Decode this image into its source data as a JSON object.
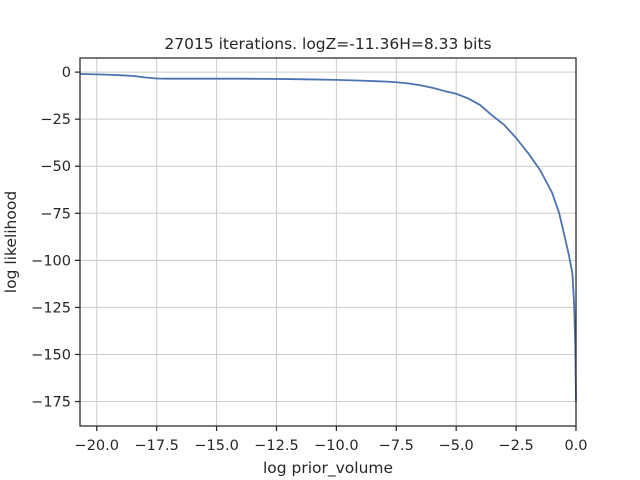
{
  "chart_data": {
    "type": "line",
    "title": "27015 iterations. logZ=-11.36H=8.33 bits",
    "xlabel": "log prior_volume",
    "ylabel": "log likelihood",
    "xlim": [
      -20.7,
      0.0
    ],
    "ylim": [
      -188,
      7.5
    ],
    "grid": true,
    "xticks": [
      -20.0,
      -17.5,
      -15.0,
      -12.5,
      -10.0,
      -7.5,
      -5.0,
      -2.5,
      0.0
    ],
    "xtick_labels": [
      "−20.0",
      "−17.5",
      "−15.0",
      "−12.5",
      "−10.0",
      "−7.5",
      "−5.0",
      "−2.5",
      "0.0"
    ],
    "yticks": [
      0,
      -25,
      -50,
      -75,
      -100,
      -125,
      -150,
      -175
    ],
    "ytick_labels": [
      "0",
      "−25",
      "−50",
      "−75",
      "−100",
      "−125",
      "−150",
      "−175"
    ],
    "color": "#4c72b0",
    "series": [
      {
        "x": [
          -20.7,
          -20.0,
          -19.5,
          -19.0,
          -18.5,
          -18.0,
          -17.5,
          -17.0,
          -16.0,
          -15.0,
          -14.0,
          -13.0,
          -12.0,
          -11.0,
          -10.0,
          -9.0,
          -8.0,
          -7.5,
          -7.0,
          -6.5,
          -6.0,
          -5.5,
          -5.0,
          -4.5,
          -4.0,
          -3.5,
          -3.0,
          -2.5,
          -2.0,
          -1.5,
          -1.0,
          -0.7,
          -0.5,
          -0.3,
          -0.15,
          -0.08,
          -0.03,
          0.0
        ],
        "y": [
          -1.0,
          -1.2,
          -1.4,
          -1.7,
          -2.0,
          -2.8,
          -3.4,
          -3.5,
          -3.5,
          -3.5,
          -3.5,
          -3.6,
          -3.7,
          -3.9,
          -4.1,
          -4.5,
          -5.0,
          -5.4,
          -6.0,
          -7.0,
          -8.3,
          -10.0,
          -11.5,
          -14.0,
          -17.5,
          -23.0,
          -28.0,
          -35.0,
          -43.0,
          -52.0,
          -64.0,
          -75.0,
          -86.0,
          -97.0,
          -107.0,
          -123.0,
          -145.0,
          -175.0
        ]
      }
    ]
  }
}
